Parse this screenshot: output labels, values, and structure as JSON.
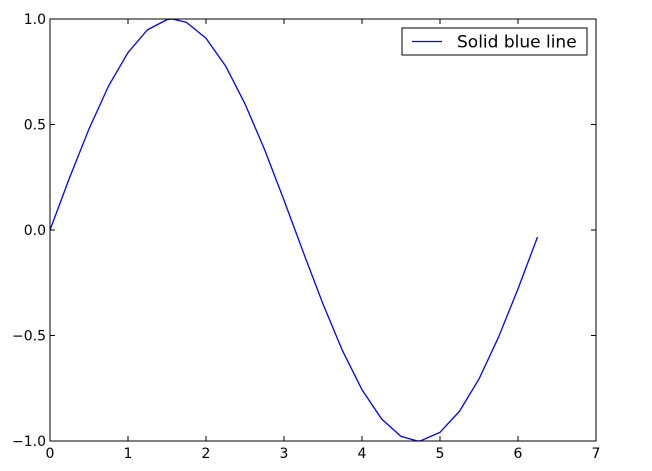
{
  "chart_data": {
    "type": "line",
    "title": "",
    "xlabel": "",
    "ylabel": "",
    "xlim": [
      0,
      7
    ],
    "ylim": [
      -1.0,
      1.0
    ],
    "xticks": [
      0,
      1,
      2,
      3,
      4,
      5,
      6,
      7
    ],
    "yticks": [
      -1.0,
      -0.5,
      0.0,
      0.5,
      1.0
    ],
    "xtick_labels": [
      "0",
      "1",
      "2",
      "3",
      "4",
      "5",
      "6",
      "7"
    ],
    "ytick_labels": [
      "−1.0",
      "−0.5",
      "0.0",
      "0.5",
      "1.0"
    ],
    "grid": false,
    "legend_position": "top-right",
    "series": [
      {
        "name": "Solid blue line",
        "color": "#0000ff",
        "line_style": "solid",
        "x": [
          0.0,
          0.25,
          0.5,
          0.75,
          1.0,
          1.25,
          1.5,
          1.5708,
          1.75,
          2.0,
          2.25,
          2.5,
          2.75,
          3.0,
          3.1416,
          3.25,
          3.5,
          3.75,
          4.0,
          4.25,
          4.5,
          4.7124,
          4.75,
          5.0,
          5.25,
          5.5,
          5.75,
          6.0,
          6.25
        ],
        "y": [
          0.0,
          0.247,
          0.479,
          0.682,
          0.841,
          0.949,
          0.997,
          1.0,
          0.984,
          0.909,
          0.778,
          0.598,
          0.382,
          0.141,
          0.0,
          -0.108,
          -0.351,
          -0.572,
          -0.757,
          -0.895,
          -0.978,
          -1.0,
          -0.999,
          -0.959,
          -0.859,
          -0.706,
          -0.508,
          -0.279,
          -0.033
        ]
      }
    ]
  }
}
